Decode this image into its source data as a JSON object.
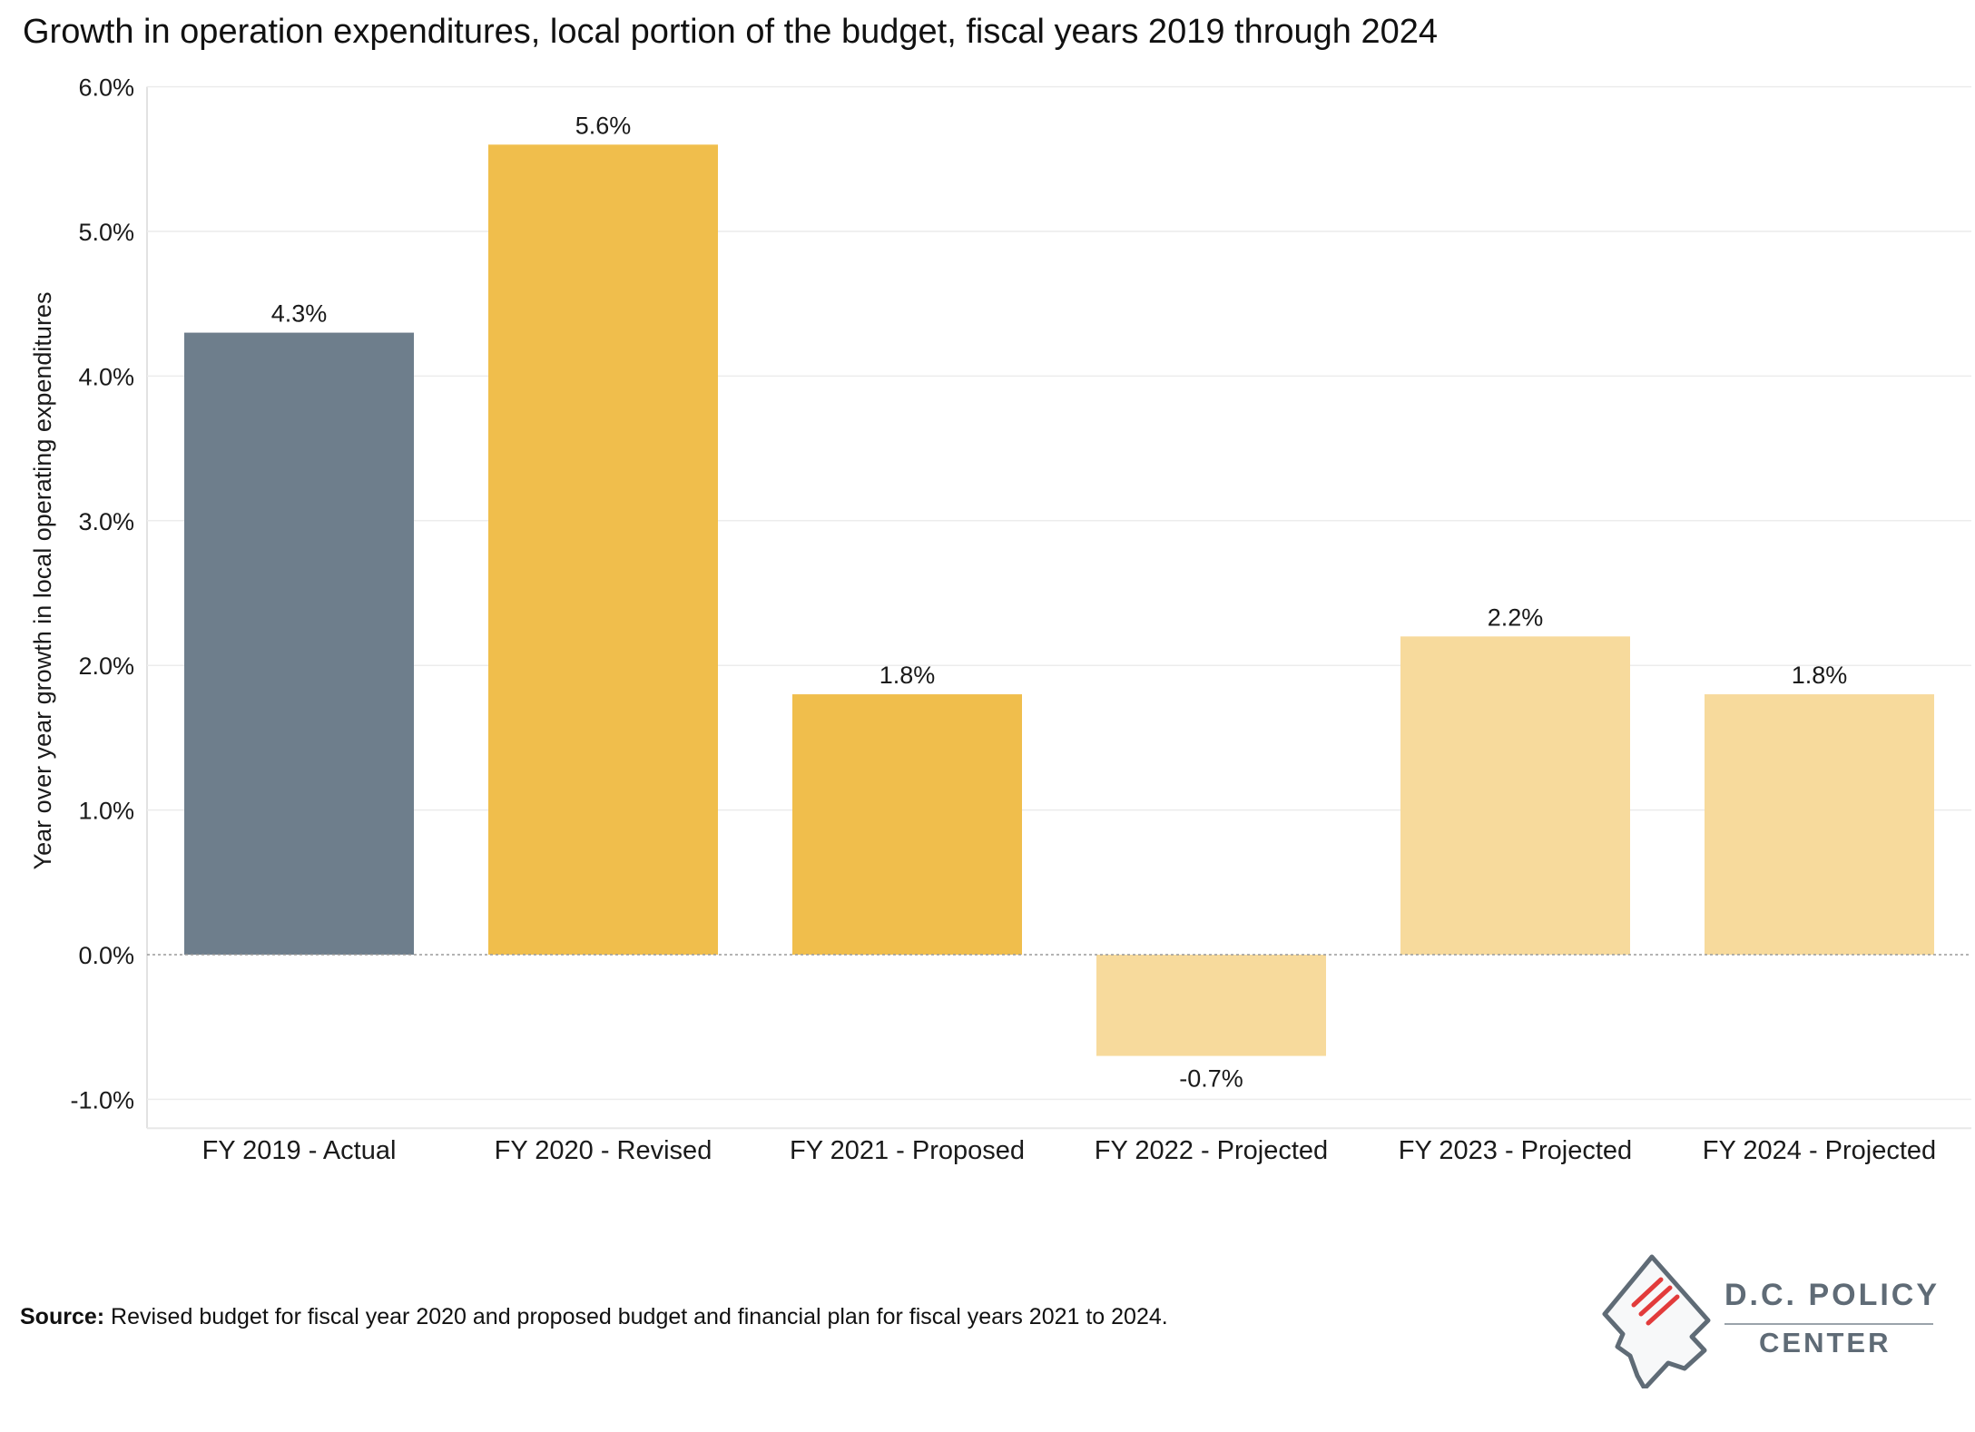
{
  "title": "Growth in operation expenditures, local portion of the budget, fiscal years 2019 through 2024",
  "source": {
    "label": "Source:",
    "text": "Revised budget for fiscal year 2020 and proposed budget and financial plan for fiscal years 2021 to 2024."
  },
  "logo": {
    "line1": "D.C. POLICY",
    "line2": "CENTER"
  },
  "chart_data": {
    "type": "bar",
    "categories": [
      "FY 2019 - Actual",
      "FY 2020 - Revised",
      "FY 2021 - Proposed",
      "FY 2022 - Projected",
      "FY 2023 - Projected",
      "FY 2024 - Projected"
    ],
    "values": [
      4.3,
      5.6,
      1.8,
      -0.7,
      2.2,
      1.8
    ],
    "data_labels": [
      "4.3%",
      "5.6%",
      "1.8%",
      "-0.7%",
      "2.2%",
      "1.8%"
    ],
    "bar_colors": [
      "#6e7e8c",
      "#f0be4c",
      "#f0be4c",
      "#f7da9c",
      "#f7da9c",
      "#f7da9c"
    ],
    "ylabel": "Year over year growth in local operating expenditures",
    "xlabel": "",
    "ylim": [
      -1.2,
      6.0
    ],
    "yticks": [
      -1.0,
      0.0,
      1.0,
      2.0,
      3.0,
      4.0,
      5.0,
      6.0
    ],
    "ytick_labels": [
      "-1.0%",
      "0.0%",
      "1.0%",
      "2.0%",
      "3.0%",
      "4.0%",
      "5.0%",
      "6.0%"
    ],
    "grid": true,
    "legend": "none"
  }
}
